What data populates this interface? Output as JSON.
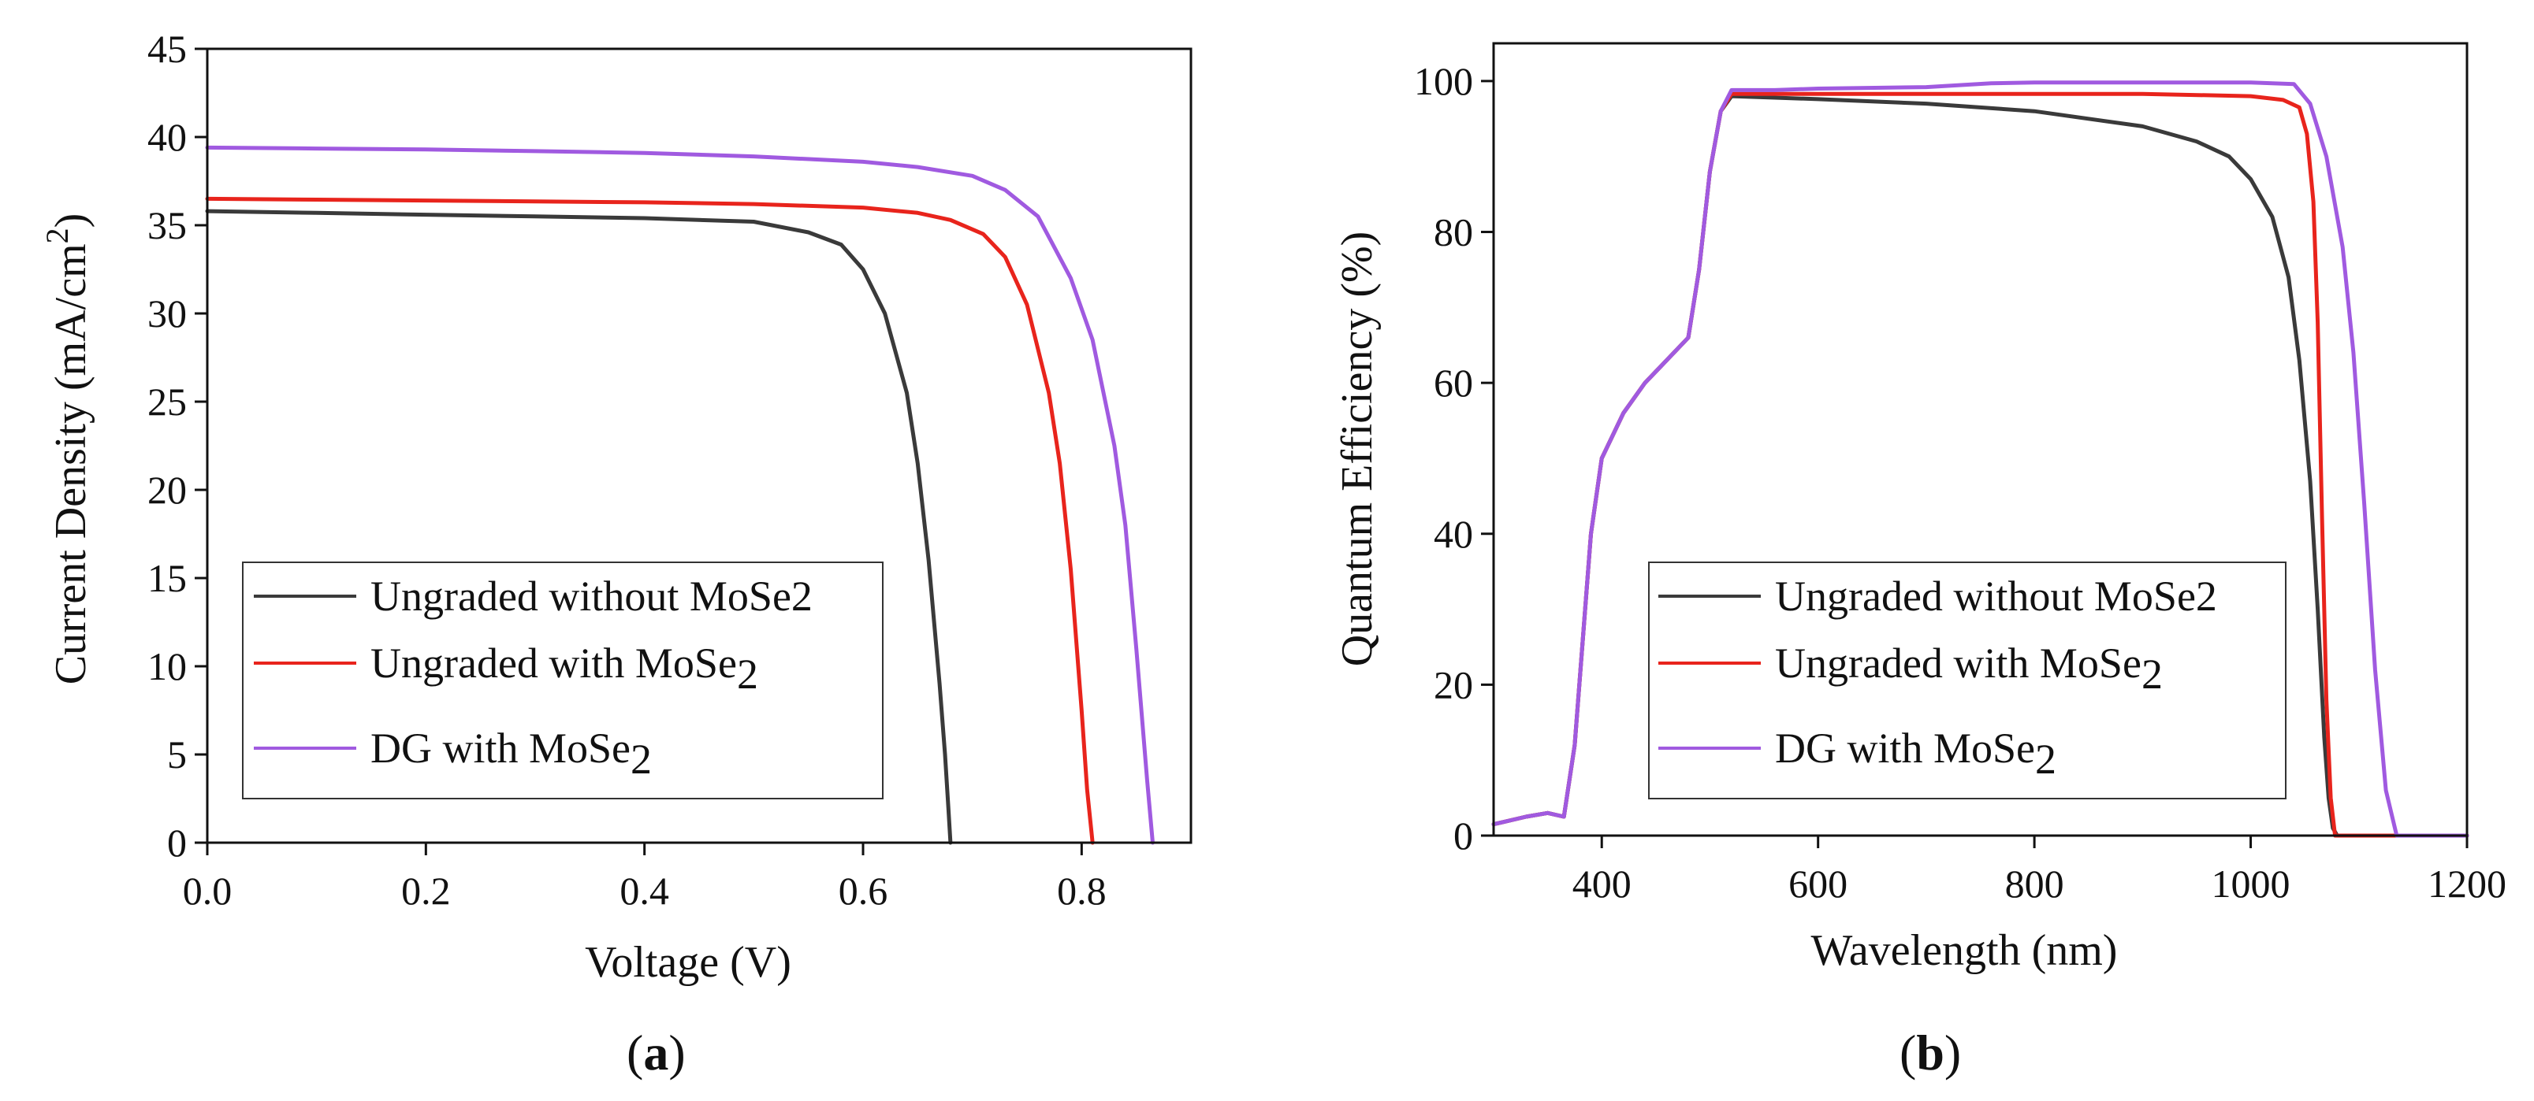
{
  "chart_data": [
    {
      "panel": "a",
      "type": "line",
      "xlabel": "Voltage (V)",
      "ylabel": {
        "base": "Current Density (mA/cm",
        "sup": "2",
        "close": ")"
      },
      "xlim": [
        0,
        0.9
      ],
      "ylim": [
        0,
        45
      ],
      "x_ticks": [
        "0.0",
        "0.2",
        "0.4",
        "0.6",
        "0.8"
      ],
      "x_tick_values": [
        0,
        0.2,
        0.4,
        0.6,
        0.8
      ],
      "y_ticks": [
        "0",
        "5",
        "10",
        "15",
        "20",
        "25",
        "30",
        "35",
        "40",
        "45"
      ],
      "y_tick_values": [
        0,
        5,
        10,
        15,
        20,
        25,
        30,
        35,
        40,
        45
      ],
      "legend": [
        {
          "base": "Ungraded without MoSe2",
          "sub": ""
        },
        {
          "base": "Ungraded with MoSe",
          "sub": "2"
        },
        {
          "base": "DG with MoSe",
          "sub": "2"
        }
      ],
      "series": [
        {
          "name": "Ungraded without MoSe2",
          "color": "#3a3a3a",
          "x": [
            0,
            0.1,
            0.2,
            0.3,
            0.4,
            0.5,
            0.55,
            0.58,
            0.6,
            0.62,
            0.64,
            0.65,
            0.66,
            0.67,
            0.675,
            0.678,
            0.68
          ],
          "y": [
            35.8,
            35.7,
            35.6,
            35.5,
            35.4,
            35.2,
            34.6,
            33.9,
            32.5,
            30.0,
            25.5,
            21.5,
            16.0,
            9.0,
            5.0,
            2.0,
            0
          ]
        },
        {
          "name": "Ungraded with MoSe2",
          "color": "#e8241c",
          "x": [
            0,
            0.1,
            0.2,
            0.3,
            0.4,
            0.5,
            0.6,
            0.65,
            0.68,
            0.71,
            0.73,
            0.75,
            0.77,
            0.78,
            0.79,
            0.8,
            0.805,
            0.81
          ],
          "y": [
            36.5,
            36.45,
            36.4,
            36.35,
            36.3,
            36.2,
            36.0,
            35.7,
            35.3,
            34.5,
            33.2,
            30.5,
            25.5,
            21.5,
            15.5,
            7.5,
            3.0,
            0
          ]
        },
        {
          "name": "DG with MoSe2",
          "color": "#a05ae0",
          "x": [
            0,
            0.1,
            0.2,
            0.3,
            0.4,
            0.5,
            0.6,
            0.65,
            0.7,
            0.73,
            0.76,
            0.79,
            0.81,
            0.83,
            0.84,
            0.85,
            0.86,
            0.865
          ],
          "y": [
            39.4,
            39.35,
            39.3,
            39.2,
            39.1,
            38.9,
            38.6,
            38.3,
            37.8,
            37.0,
            35.5,
            32.0,
            28.5,
            22.5,
            18.0,
            11.0,
            3.5,
            0
          ]
        }
      ]
    },
    {
      "panel": "b",
      "type": "line",
      "xlabel": "Wavelength (nm)",
      "ylabel": {
        "base": "Quantum Efficiency (%)",
        "sup": "",
        "close": ""
      },
      "xlim": [
        300,
        1200
      ],
      "ylim": [
        0,
        105
      ],
      "x_ticks": [
        "400",
        "600",
        "800",
        "1000",
        "1200"
      ],
      "x_tick_values": [
        400,
        600,
        800,
        1000,
        1200
      ],
      "y_ticks": [
        "0",
        "20",
        "40",
        "60",
        "80",
        "100"
      ],
      "y_tick_values": [
        0,
        20,
        40,
        60,
        80,
        100
      ],
      "legend": [
        {
          "base": "Ungraded without MoSe2",
          "sub": ""
        },
        {
          "base": "Ungraded with MoSe",
          "sub": "2"
        },
        {
          "base": "DG with MoSe",
          "sub": "2"
        }
      ],
      "series": [
        {
          "name": "Ungraded without MoSe2",
          "color": "#3a3a3a",
          "x": [
            300,
            330,
            350,
            365,
            375,
            390,
            400,
            420,
            440,
            460,
            480,
            490,
            500,
            510,
            520,
            560,
            600,
            700,
            800,
            900,
            950,
            980,
            1000,
            1020,
            1035,
            1045,
            1055,
            1062,
            1068,
            1072,
            1076,
            1080,
            1200
          ],
          "y": [
            1.5,
            2.5,
            3.0,
            2.5,
            12,
            40,
            50,
            56,
            60,
            63,
            66,
            75,
            88,
            96,
            98,
            97.8,
            97.6,
            97.0,
            96.0,
            94.0,
            92.0,
            90.0,
            87.0,
            82.0,
            74.0,
            63.0,
            47.0,
            30.0,
            13.0,
            5.0,
            1.0,
            0,
            0
          ]
        },
        {
          "name": "Ungraded with MoSe2",
          "color": "#e8241c",
          "x": [
            300,
            330,
            350,
            365,
            375,
            390,
            400,
            420,
            440,
            460,
            480,
            490,
            500,
            510,
            520,
            560,
            600,
            700,
            800,
            900,
            1000,
            1030,
            1045,
            1052,
            1058,
            1062,
            1066,
            1070,
            1074,
            1078,
            1200
          ],
          "y": [
            1.5,
            2.5,
            3.0,
            2.5,
            12,
            40,
            50,
            56,
            60,
            63,
            66,
            75,
            88,
            96,
            98.3,
            98.3,
            98.3,
            98.3,
            98.3,
            98.3,
            98.0,
            97.5,
            96.5,
            93.0,
            84.0,
            68.0,
            42.0,
            18.0,
            5.0,
            0,
            0
          ]
        },
        {
          "name": "DG with MoSe2",
          "color": "#a05ae0",
          "x": [
            300,
            330,
            350,
            365,
            375,
            390,
            400,
            420,
            440,
            460,
            480,
            490,
            500,
            510,
            520,
            560,
            600,
            700,
            760,
            800,
            900,
            1000,
            1040,
            1055,
            1070,
            1085,
            1095,
            1105,
            1115,
            1125,
            1135,
            1200
          ],
          "y": [
            1.5,
            2.5,
            3.0,
            2.5,
            12,
            40,
            50,
            56,
            60,
            63,
            66,
            75,
            88,
            96,
            98.8,
            98.8,
            99.0,
            99.2,
            99.7,
            99.8,
            99.8,
            99.8,
            99.6,
            97.0,
            90.0,
            78.0,
            64.0,
            44.0,
            22.0,
            6.0,
            0,
            0
          ]
        }
      ]
    }
  ]
}
